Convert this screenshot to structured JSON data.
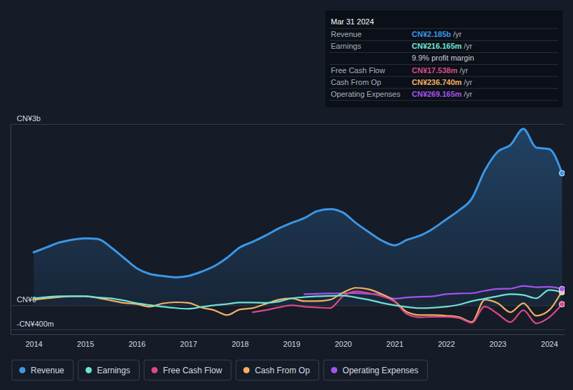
{
  "chart_data": {
    "type": "line",
    "x": [
      2014,
      2014.25,
      2014.5,
      2014.75,
      2015,
      2015.25,
      2015.5,
      2015.75,
      2016,
      2016.25,
      2016.5,
      2016.75,
      2017,
      2017.25,
      2017.5,
      2017.75,
      2018,
      2018.25,
      2018.5,
      2018.75,
      2019,
      2019.25,
      2019.5,
      2019.75,
      2020,
      2020.25,
      2020.5,
      2020.75,
      2021,
      2021.25,
      2021.5,
      2021.75,
      2022,
      2022.25,
      2022.5,
      2022.75,
      2023,
      2023.25,
      2023.5,
      2023.75,
      2024,
      2024.25
    ],
    "xlim": [
      2013.55,
      2024.3
    ],
    "xticks": [
      2014,
      2015,
      2016,
      2017,
      2018,
      2019,
      2020,
      2021,
      2022,
      2023,
      2024
    ],
    "ylim": [
      -480,
      3000
    ],
    "yticks": [
      {
        "value": -400,
        "label": "-CN¥400m"
      },
      {
        "value": 0,
        "label": "CN¥0"
      },
      {
        "value": 3000,
        "label": "CN¥3b"
      }
    ],
    "grid": true,
    "legend": "bottom",
    "series": [
      {
        "name": "Revenue",
        "type": "area",
        "color": "#3b97e6",
        "values": [
          877,
          958,
          1039,
          1085,
          1108,
          1096,
          958,
          785,
          612,
          519,
          485,
          462,
          485,
          554,
          646,
          785,
          958,
          1050,
          1154,
          1269,
          1362,
          1442,
          1558,
          1592,
          1535,
          1362,
          1212,
          1073,
          992,
          1085,
          1154,
          1269,
          1419,
          1569,
          1766,
          2227,
          2539,
          2654,
          2920,
          2608,
          2585,
          2185
        ]
      },
      {
        "name": "Earnings",
        "type": "line",
        "color": "#6ee3d3",
        "values": [
          115,
          135,
          150,
          150,
          150,
          130,
          115,
          80,
          35,
          5,
          -23,
          -45,
          -58,
          -30,
          0,
          20,
          46,
          46,
          40,
          60,
          115,
          135,
          150,
          155,
          162,
          130,
          92,
          40,
          0,
          -30,
          -46,
          -40,
          -23,
          10,
          69,
          110,
          150,
          185,
          170,
          115,
          254,
          216.165
        ]
      },
      {
        "name": "Free Cash Flow",
        "type": "line",
        "color": "#d94a86",
        "values": [
          null,
          null,
          null,
          null,
          null,
          null,
          null,
          null,
          null,
          null,
          null,
          null,
          null,
          null,
          null,
          null,
          null,
          -115,
          -81,
          -35,
          0,
          -23,
          -35,
          -46,
          150,
          230,
          200,
          150,
          60,
          -150,
          -200,
          -190,
          -190,
          -210,
          -290,
          -20,
          -140,
          -280,
          -80,
          -300,
          -200,
          17.538
        ]
      },
      {
        "name": "Cash From Op",
        "type": "line",
        "color": "#f3b062",
        "values": [
          92,
          115,
          135,
          150,
          150,
          120,
          80,
          40,
          20,
          -23,
          30,
          50,
          40,
          -35,
          -81,
          -162,
          -69,
          -46,
          23,
          92,
          115,
          69,
          69,
          92,
          208,
          289,
          265,
          185,
          69,
          -115,
          -162,
          -162,
          -173,
          -196,
          -277,
          92,
          35,
          -115,
          35,
          -173,
          -81,
          236.74
        ]
      },
      {
        "name": "Operating Expenses",
        "type": "line",
        "color": "#a652f0",
        "values": [
          null,
          null,
          null,
          null,
          null,
          null,
          null,
          null,
          null,
          null,
          null,
          null,
          null,
          null,
          null,
          null,
          null,
          null,
          null,
          null,
          null,
          185,
          190,
          195,
          200,
          200,
          190,
          175,
          110,
          130,
          140,
          150,
          185,
          195,
          200,
          240,
          270,
          275,
          320,
          300,
          305,
          269.165
        ]
      }
    ],
    "tooltip": {
      "title": "Mar 31 2024",
      "rows": [
        {
          "label": "Revenue",
          "value": "CN¥2.185b",
          "unit": "/yr",
          "color": "#3b97e6"
        },
        {
          "label": "Earnings",
          "value": "CN¥216.165m",
          "unit": "/yr",
          "color": "#6ee3d3"
        },
        {
          "value": "9.9% profit margin"
        },
        {
          "label": "Free Cash Flow",
          "value": "CN¥17.538m",
          "unit": "/yr",
          "color": "#d94a86"
        },
        {
          "label": "Cash From Op",
          "value": "CN¥236.740m",
          "unit": "/yr",
          "color": "#f3b062"
        },
        {
          "label": "Operating Expenses",
          "value": "CN¥269.165m",
          "unit": "/yr",
          "color": "#a652f0"
        }
      ]
    }
  }
}
